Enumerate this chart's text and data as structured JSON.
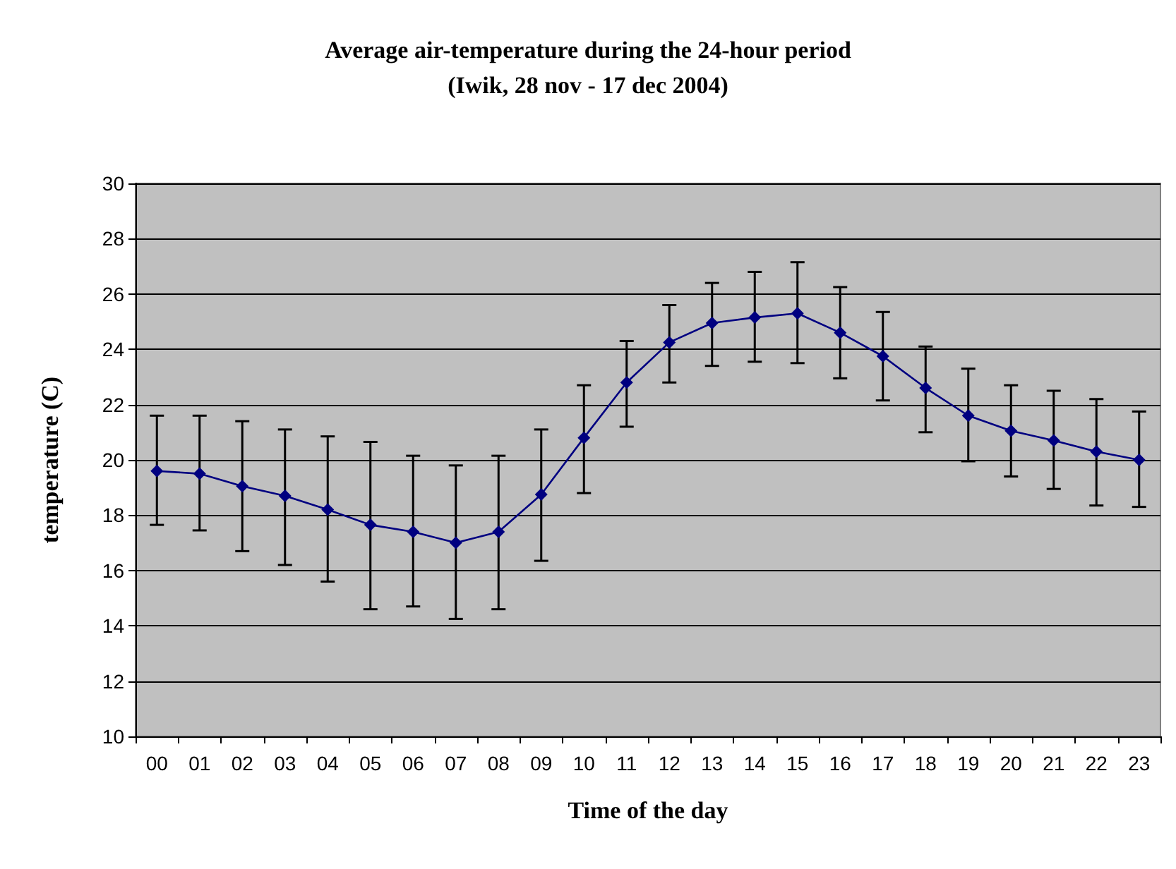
{
  "chart_data": {
    "type": "line",
    "title": "Average air-temperature during the 24-hour period",
    "subtitle": "(Iwik, 28 nov - 17 dec 2004)",
    "xlabel": "Time of the day",
    "ylabel": "temperature (C)",
    "categories": [
      "00",
      "01",
      "02",
      "03",
      "04",
      "05",
      "06",
      "07",
      "08",
      "09",
      "10",
      "11",
      "12",
      "13",
      "14",
      "15",
      "16",
      "17",
      "18",
      "19",
      "20",
      "21",
      "22",
      "23"
    ],
    "series": [
      {
        "color": "#000080",
        "values": [
          19.6,
          19.5,
          19.05,
          18.7,
          18.2,
          17.65,
          17.4,
          17.0,
          17.4,
          18.75,
          20.8,
          22.8,
          24.25,
          24.95,
          25.15,
          25.3,
          24.6,
          23.75,
          22.6,
          21.6,
          21.05,
          20.7,
          20.3,
          20.0
        ],
        "errors": [
          [
            17.65,
            21.6
          ],
          [
            17.45,
            21.6
          ],
          [
            16.7,
            21.4
          ],
          [
            16.2,
            21.1
          ],
          [
            15.6,
            20.85
          ],
          [
            14.6,
            20.65
          ],
          [
            14.7,
            20.15
          ],
          [
            14.25,
            19.8
          ],
          [
            14.6,
            20.15
          ],
          [
            16.35,
            21.1
          ],
          [
            18.8,
            22.7
          ],
          [
            21.2,
            24.3
          ],
          [
            22.8,
            25.6
          ],
          [
            23.4,
            26.4
          ],
          [
            23.55,
            26.8
          ],
          [
            23.5,
            27.15
          ],
          [
            22.95,
            26.25
          ],
          [
            22.15,
            25.35
          ],
          [
            21.0,
            24.1
          ],
          [
            19.95,
            23.3
          ],
          [
            19.4,
            22.7
          ],
          [
            18.95,
            22.5
          ],
          [
            18.35,
            22.2
          ],
          [
            18.3,
            21.75
          ]
        ]
      }
    ],
    "ylim": [
      10,
      30
    ],
    "yticks": [
      10,
      12,
      14,
      16,
      18,
      20,
      22,
      24,
      26,
      28,
      30
    ],
    "grid": "y",
    "marker": "diamond",
    "line_style": "solid"
  }
}
